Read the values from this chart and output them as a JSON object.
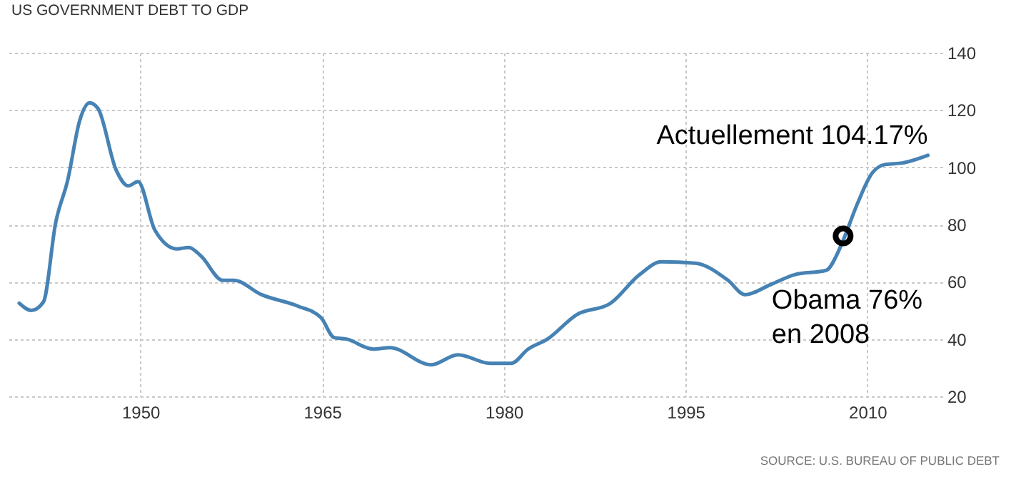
{
  "chart_data": {
    "type": "line",
    "title": "US GOVERNMENT DEBT TO GDP",
    "series": [
      {
        "color": "#4682b4",
        "marker": "none",
        "x": [
          1940,
          1941,
          1942,
          1943,
          1944,
          1945,
          1945.8,
          1946.5,
          1948,
          1949,
          1949.8,
          1951.2,
          1953,
          1954,
          1955,
          1956.8,
          1957.7,
          1960,
          1963,
          1964.9,
          1966,
          1967,
          1969.2,
          1970.6,
          1974,
          1976.2,
          1978.9,
          1980.6,
          1982,
          1983.6,
          1986,
          1988.8,
          1991.2,
          1993,
          1995.8,
          1998.5,
          1999.9,
          2002,
          2004,
          2006.6,
          2007.6,
          2008.1,
          2009.2,
          2010.4,
          2011.5,
          2012.9,
          2015
        ],
        "values": [
          52.5,
          50,
          53,
          80.5,
          95.5,
          116.5,
          122.5,
          120.5,
          99,
          93.5,
          95,
          78,
          71.5,
          72,
          69,
          60.5,
          60.5,
          55.5,
          51.5,
          47.5,
          40.5,
          40,
          36.5,
          37,
          31,
          34.5,
          31.5,
          31.5,
          36.5,
          40,
          48.5,
          52.5,
          62.5,
          67,
          66.5,
          60.5,
          55.5,
          59,
          62.5,
          64,
          70.5,
          75.5,
          87.5,
          98,
          101,
          101.5,
          104.17
        ]
      },
      {
        "type": "scatter",
        "color": "#000000",
        "marker": "circle",
        "x": [
          2008
        ],
        "values": [
          76
        ]
      }
    ],
    "xlim": [
      1939,
      2016.2
    ],
    "xticks": [
      1950,
      1965,
      1980,
      1995,
      2010
    ],
    "ylim": [
      20,
      140
    ],
    "yticks": [
      20,
      40,
      60,
      80,
      100,
      120,
      140
    ],
    "grid": true,
    "annotations": [
      {
        "text": "Actuellement 104.17%",
        "x": 2015,
        "y": 104.17
      },
      {
        "text": "Obama 76%\nen 2008",
        "x": 2008,
        "y": 76
      },
      "SOURCE: U.S. BUREAU OF PUBLIC DEBT"
    ]
  }
}
